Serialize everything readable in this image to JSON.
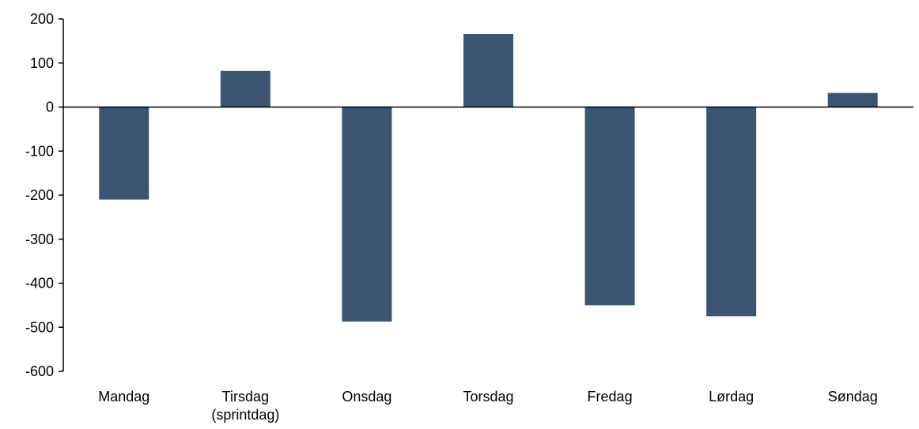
{
  "chart_data": {
    "type": "bar",
    "title": "",
    "xlabel": "",
    "ylabel": "",
    "categories": [
      [
        "Mandag"
      ],
      [
        "Tirsdag",
        "(sprintdag)"
      ],
      [
        "Onsdag"
      ],
      [
        "Torsdag"
      ],
      [
        "Fredag"
      ],
      [
        "Lørdag"
      ],
      [
        "Søndag"
      ]
    ],
    "values": [
      -210,
      82,
      -487,
      166,
      -450,
      -475,
      32
    ],
    "ylim": [
      -600,
      200
    ],
    "yticks": [
      200,
      100,
      0,
      -100,
      -200,
      -300,
      -400,
      -500,
      -600
    ],
    "grid": false,
    "legend": "none",
    "bar_color": "#3b5573"
  }
}
